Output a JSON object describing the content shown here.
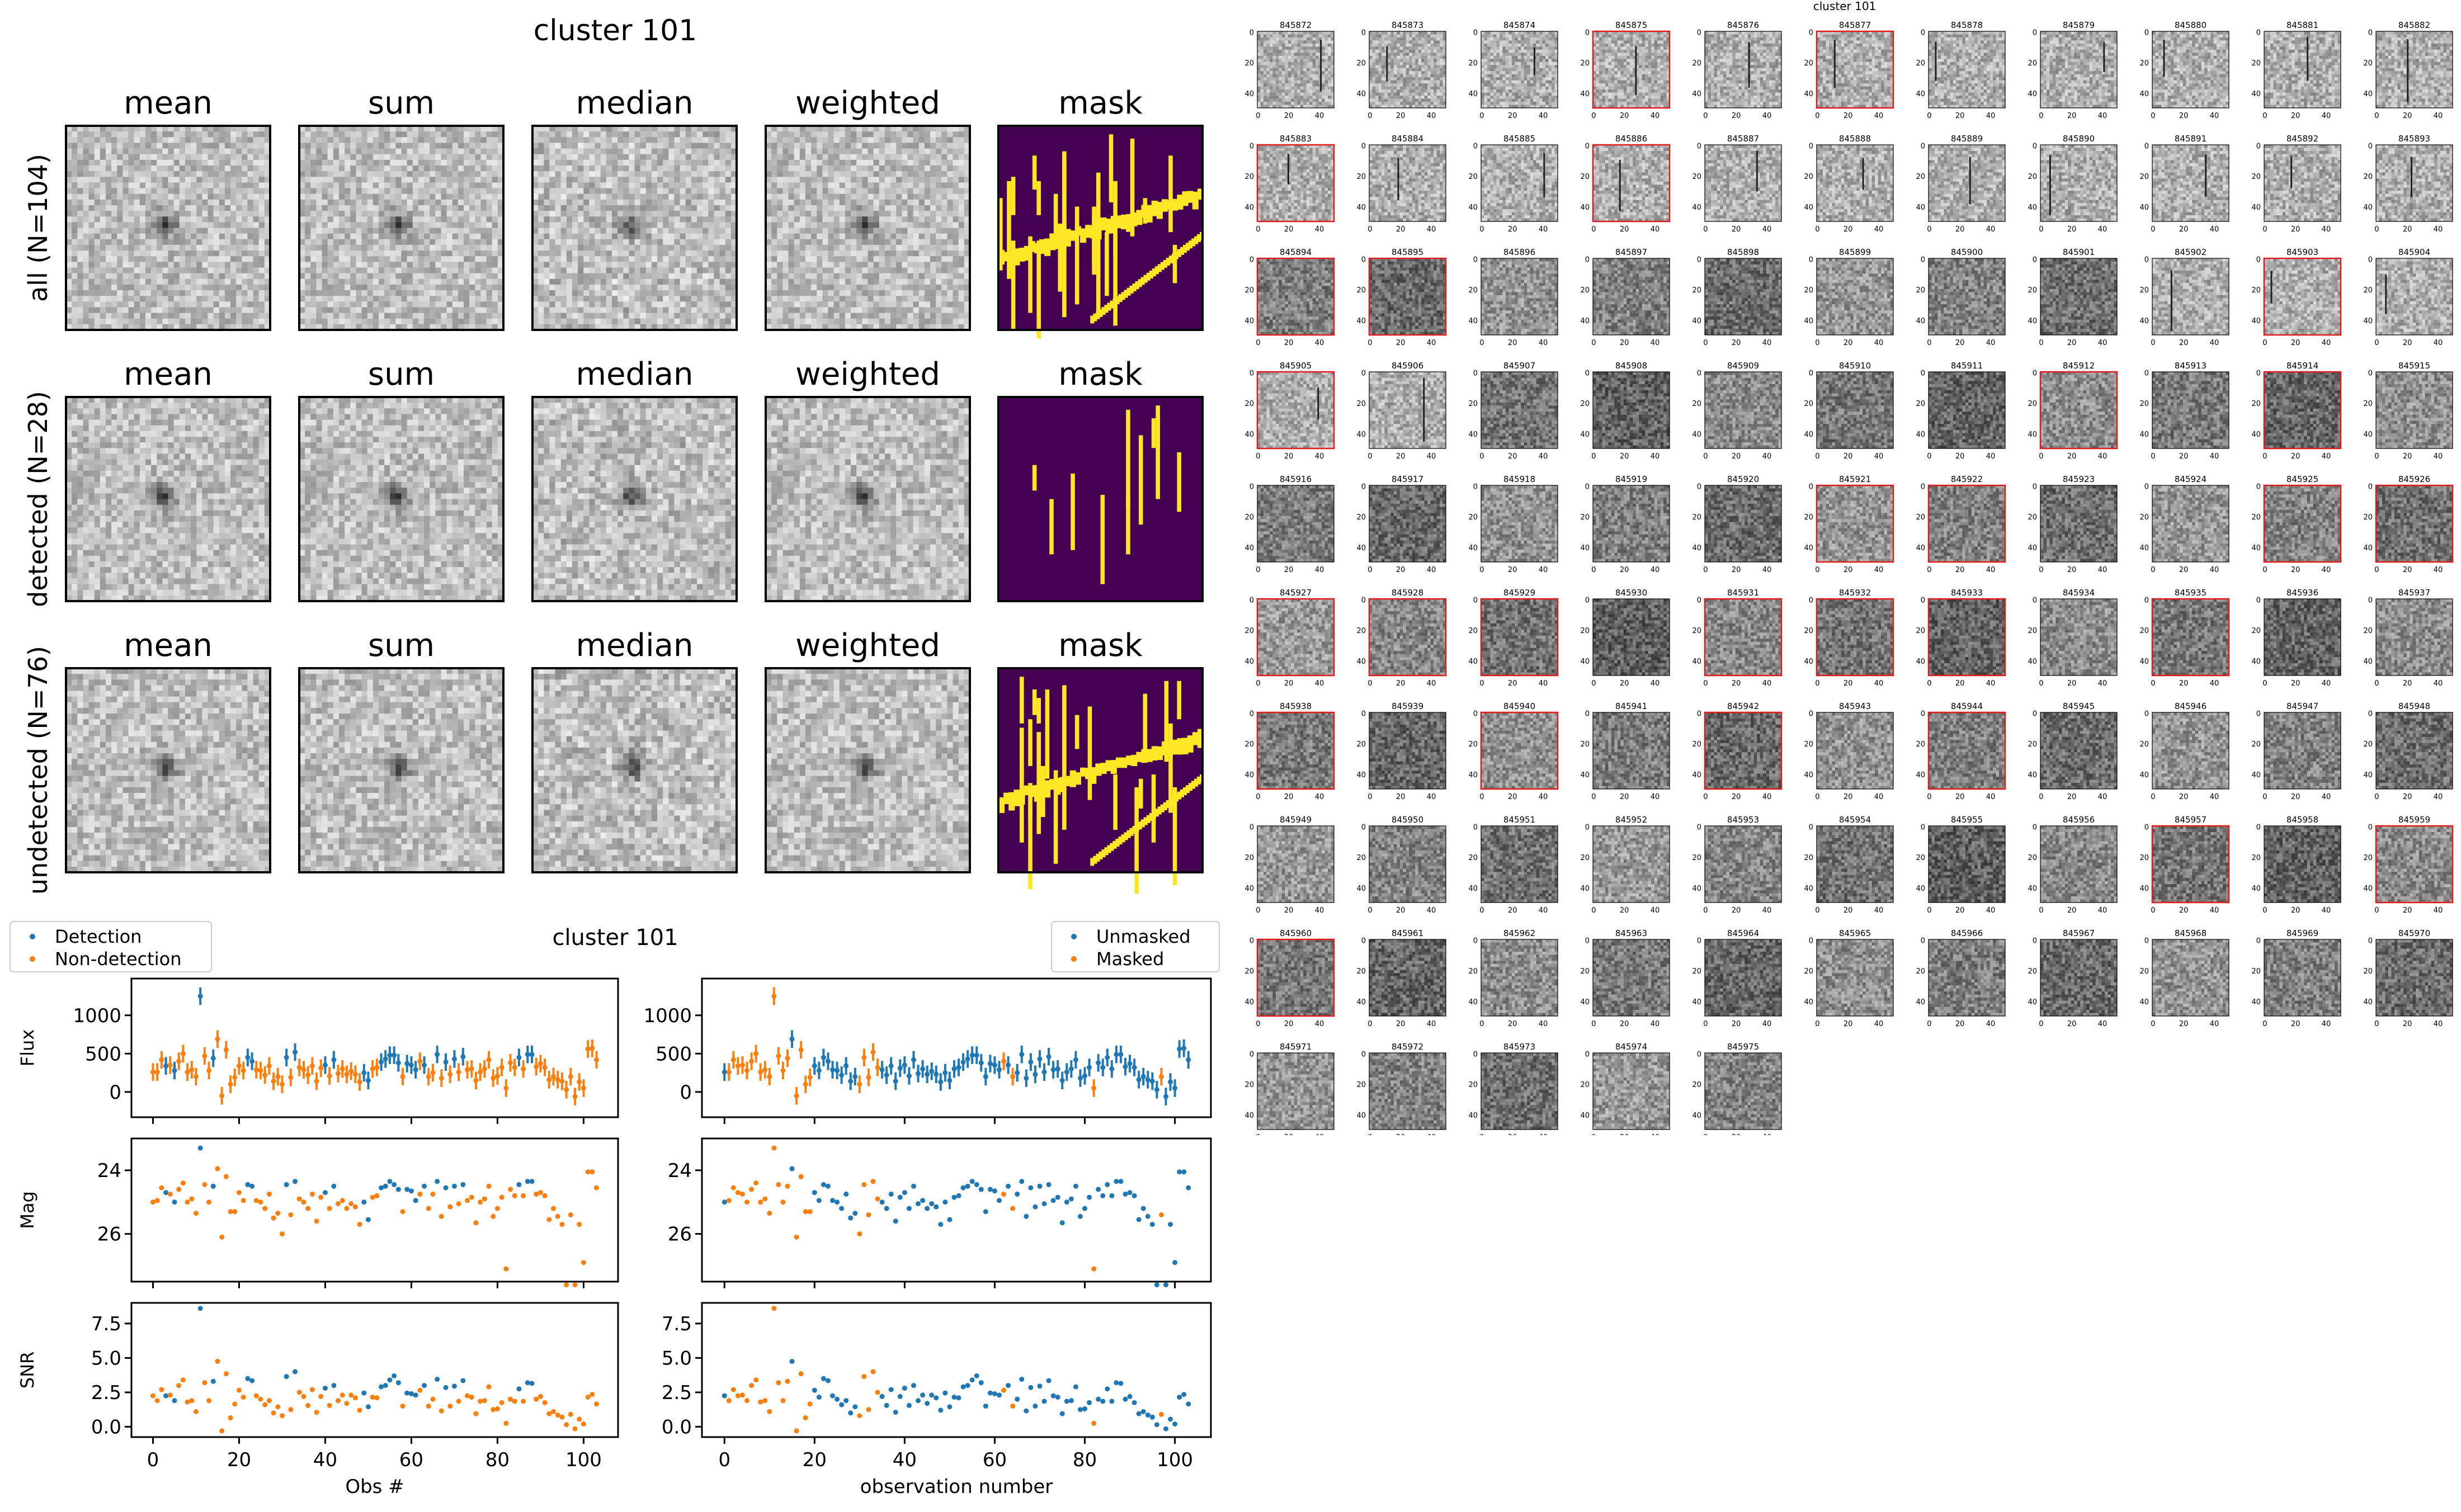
{
  "stack_figure": {
    "title": "cluster 101",
    "column_titles": [
      "mean",
      "sum",
      "median",
      "weighted",
      "mask"
    ],
    "rows": [
      {
        "label": "all (N=104)",
        "n": 104
      },
      {
        "label": "detected (N=28)",
        "n": 28
      },
      {
        "label": "undetected (N=76)",
        "n": 76
      }
    ],
    "mask_colors": {
      "off": "#440154",
      "on": "#fde725"
    }
  },
  "chart_data": [
    {
      "type": "scatter",
      "title": "cluster 101",
      "panel": "left",
      "legend": [
        {
          "label": "Detection",
          "color": "#1f77b4"
        },
        {
          "label": "Non-detection",
          "color": "#ff7f0e"
        }
      ],
      "legend_position": "top-left",
      "xlabel": "Obs #",
      "xlim": [
        -5,
        108
      ],
      "xticks": [
        0,
        20,
        40,
        60,
        80,
        100
      ],
      "subplots": [
        {
          "ylabel": "Flux",
          "ylim": [
            -330,
            1480
          ],
          "yticks": [
            0,
            500,
            1000
          ],
          "error_bars": true,
          "inverted": false
        },
        {
          "ylabel": "Mag",
          "ylim": [
            27.5,
            23.0
          ],
          "yticks": [
            24,
            26
          ],
          "error_bars": false,
          "inverted": true
        },
        {
          "ylabel": "SNR",
          "ylim": [
            -0.75,
            9.0
          ],
          "yticks": [
            0.0,
            2.5,
            5.0,
            7.5
          ],
          "ytick_labels": [
            "0.0",
            "2.5",
            "5.0",
            "7.5"
          ],
          "error_bars": false,
          "inverted": false
        }
      ],
      "color_by": "detected"
    },
    {
      "type": "scatter",
      "title": "",
      "panel": "right",
      "legend": [
        {
          "label": "Unmasked",
          "color": "#1f77b4"
        },
        {
          "label": "Masked",
          "color": "#ff7f0e"
        }
      ],
      "legend_position": "top-right",
      "xlabel": "observation number",
      "xlim": [
        -5,
        108
      ],
      "xticks": [
        0,
        20,
        40,
        60,
        80,
        100
      ],
      "subplots": [
        {
          "ylabel": "",
          "ylim": [
            -330,
            1480
          ],
          "yticks": [
            0,
            500,
            1000
          ],
          "error_bars": true,
          "inverted": false
        },
        {
          "ylabel": "",
          "ylim": [
            27.5,
            23.0
          ],
          "yticks": [
            24,
            26
          ],
          "error_bars": false,
          "inverted": true
        },
        {
          "ylabel": "",
          "ylim": [
            -0.75,
            9.0
          ],
          "yticks": [
            0.0,
            2.5,
            5.0,
            7.5
          ],
          "ytick_labels": [
            "0.0",
            "2.5",
            "5.0",
            "7.5"
          ],
          "error_bars": false,
          "inverted": false
        }
      ],
      "color_by": "masked"
    }
  ],
  "observations": {
    "snr": [
      2.25,
      1.9,
      2.7,
      2.25,
      2.3,
      1.9,
      3.0,
      3.4,
      1.8,
      1.9,
      1.1,
      8.6,
      3.2,
      1.9,
      3.3,
      4.75,
      -0.3,
      3.85,
      0.65,
      1.65,
      2.65,
      2.15,
      3.5,
      3.35,
      2.25,
      2.0,
      1.6,
      1.9,
      1.0,
      1.45,
      0.8,
      3.65,
      1.25,
      4.0,
      2.5,
      2.2,
      1.55,
      2.7,
      1.05,
      2.2,
      2.8,
      1.55,
      3.0,
      1.9,
      2.3,
      1.7,
      2.3,
      2.1,
      1.2,
      2.45,
      1.45,
      2.15,
      2.1,
      2.9,
      3.0,
      3.4,
      3.7,
      3.2,
      1.5,
      2.45,
      2.4,
      2.3,
      2.65,
      3.0,
      1.5,
      2.0,
      3.45,
      1.15,
      2.85,
      1.5,
      2.95,
      1.85,
      3.35,
      2.25,
      2.15,
      0.95,
      1.85,
      1.9,
      2.9,
      1.25,
      1.3,
      1.75,
      0.25,
      2.0,
      1.85,
      2.75,
      1.85,
      3.2,
      3.15,
      2.0,
      2.2,
      1.75,
      0.95,
      1.1,
      0.85,
      0.7,
      0.15,
      0.9,
      -0.15,
      0.55,
      0.2,
      2.15,
      2.35,
      1.65
    ],
    "flux": [
      260,
      260,
      420,
      340,
      350,
      280,
      400,
      500,
      260,
      290,
      200,
      1250,
      470,
      280,
      440,
      690,
      -50,
      550,
      100,
      190,
      340,
      280,
      450,
      400,
      290,
      280,
      220,
      340,
      140,
      200,
      100,
      450,
      190,
      520,
      320,
      290,
      220,
      340,
      140,
      310,
      350,
      210,
      420,
      240,
      300,
      230,
      270,
      230,
      130,
      250,
      150,
      300,
      320,
      390,
      430,
      480,
      480,
      380,
      200,
      370,
      350,
      290,
      400,
      350,
      200,
      250,
      490,
      180,
      390,
      230,
      430,
      260,
      460,
      290,
      300,
      150,
      260,
      300,
      420,
      180,
      210,
      320,
      50,
      380,
      320,
      450,
      300,
      490,
      490,
      330,
      370,
      320,
      160,
      200,
      160,
      140,
      30,
      200,
      -60,
      130,
      50,
      560,
      570,
      420
    ],
    "mag": [
      25.0,
      24.95,
      24.55,
      24.7,
      24.75,
      25.0,
      24.6,
      24.4,
      25.0,
      24.9,
      25.35,
      23.3,
      24.45,
      25.0,
      24.5,
      23.95,
      26.1,
      24.2,
      25.3,
      25.3,
      24.7,
      24.95,
      24.45,
      24.5,
      24.95,
      25.0,
      25.2,
      24.75,
      25.5,
      25.35,
      26.0,
      24.45,
      25.4,
      24.35,
      24.9,
      25.0,
      25.2,
      24.75,
      25.6,
      24.85,
      24.7,
      25.2,
      24.5,
      25.05,
      24.95,
      25.2,
      25.05,
      25.15,
      25.7,
      25.0,
      25.55,
      24.85,
      24.8,
      24.55,
      24.5,
      24.35,
      24.45,
      24.6,
      25.3,
      24.6,
      24.65,
      24.95,
      24.75,
      24.5,
      25.2,
      24.75,
      24.35,
      25.45,
      24.55,
      25.15,
      24.5,
      25.05,
      24.45,
      24.95,
      24.85,
      25.65,
      25.0,
      24.9,
      24.5,
      25.45,
      25.2,
      24.85,
      27.1,
      24.6,
      24.8,
      24.45,
      24.8,
      24.35,
      24.35,
      24.75,
      24.7,
      24.8,
      25.55,
      25.2,
      25.45,
      25.7,
      27.6,
      25.4,
      27.6,
      25.7,
      26.9,
      24.05,
      24.05,
      24.55
    ],
    "detected_indices": [
      3,
      5,
      11,
      14,
      22,
      23,
      31,
      33,
      40,
      42,
      49,
      50,
      53,
      54,
      55,
      56,
      57,
      59,
      60,
      61,
      63,
      66,
      68,
      70,
      72,
      85,
      87,
      88
    ],
    "masked_indices": [
      1,
      2,
      3,
      4,
      5,
      6,
      7,
      8,
      9,
      10,
      11,
      12,
      13,
      14,
      16,
      17,
      18,
      19,
      30,
      31,
      32,
      33,
      34,
      62,
      64,
      82,
      97
    ]
  },
  "thumbnail_figure": {
    "title": "cluster 101",
    "tick_labels": [
      "0",
      "20",
      "40"
    ],
    "detection_border_color": "#e31a1c",
    "ids": [
      "845872",
      "845873",
      "845874",
      "845875",
      "845876",
      "845877",
      "845878",
      "845879",
      "845880",
      "845881",
      "845882",
      "845883",
      "845884",
      "845885",
      "845886",
      "845887",
      "845888",
      "845889",
      "845890",
      "845891",
      "845892",
      "845893",
      "845894",
      "845895",
      "845896",
      "845897",
      "845898",
      "845899",
      "845900",
      "845901",
      "845902",
      "845903",
      "845904",
      "845905",
      "845906",
      "845907",
      "845908",
      "845909",
      "845910",
      "845911",
      "845912",
      "845913",
      "845914",
      "845915",
      "845916",
      "845917",
      "845918",
      "845919",
      "845920",
      "845921",
      "845922",
      "845923",
      "845924",
      "845925",
      "845926",
      "845927",
      "845928",
      "845929",
      "845930",
      "845931",
      "845932",
      "845933",
      "845934",
      "845935",
      "845936",
      "845937",
      "845938",
      "845939",
      "845940",
      "845941",
      "845942",
      "845943",
      "845944",
      "845945",
      "845946",
      "845947",
      "845948",
      "845949",
      "845950",
      "845951",
      "845952",
      "845953",
      "845954",
      "845955",
      "845956",
      "845957",
      "845958",
      "845959",
      "845960",
      "845961",
      "845962",
      "845963",
      "845964",
      "845965",
      "845966",
      "845967",
      "845968",
      "845969",
      "845970",
      "845971",
      "845972",
      "845973",
      "845974",
      "845975"
    ],
    "detected_ids": [
      "845875",
      "845877",
      "845883",
      "845886",
      "845894",
      "845895",
      "845903",
      "845905",
      "845912",
      "845914",
      "845921",
      "845922",
      "845925",
      "845926",
      "845927",
      "845928",
      "845929",
      "845931",
      "845932",
      "845933",
      "845935",
      "845938",
      "845940",
      "845942",
      "845944",
      "845957",
      "845959",
      "845960"
    ],
    "streak_ids": [
      "845872",
      "845873",
      "845874",
      "845875",
      "845876",
      "845877",
      "845878",
      "845879",
      "845880",
      "845881",
      "845882",
      "845883",
      "845884",
      "845885",
      "845886",
      "845887",
      "845888",
      "845889",
      "845890",
      "845891",
      "845892",
      "845893",
      "845902",
      "845903",
      "845904",
      "845905",
      "845906"
    ]
  }
}
